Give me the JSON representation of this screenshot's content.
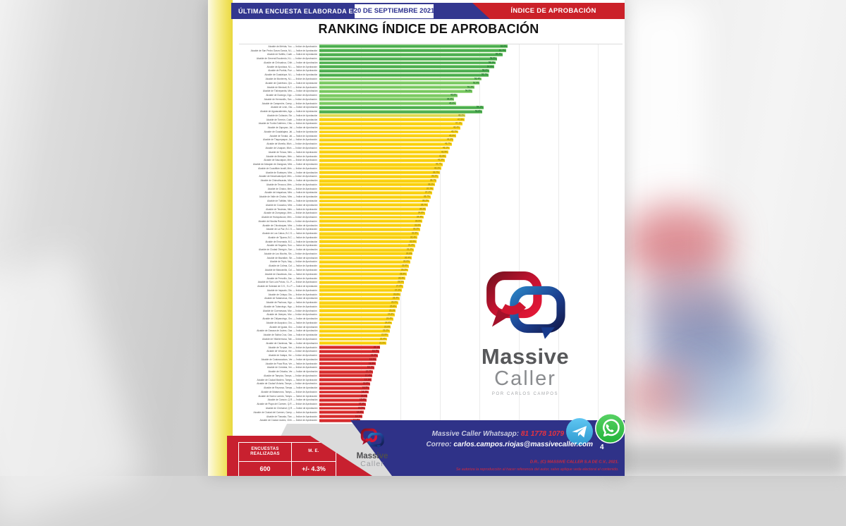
{
  "header": {
    "banner_label": "ÚLTIMA ENCUESTA ELABORADA EL",
    "banner_date": "20  DE SEPTIEMBRE 2021",
    "ribbon": "ÍNDICE DE APROBACIÓN"
  },
  "title": "RANKING ÍNDICE DE APROBACIÓN",
  "chart_data": {
    "type": "bar",
    "orientation": "horizontal",
    "title": "RANKING ÍNDICE DE APROBACIÓN",
    "unit": "%",
    "xlim": [
      0,
      100
    ],
    "grid": true,
    "legend": "color bands: green = high approval, yellow = mid approval, red = low approval",
    "label_prefix": "Alcalde de ",
    "label_suffix": " — Índice de Aprobación",
    "rows": [
      [
        "Mérida, Yuc.",
        62.0,
        "g1"
      ],
      [
        "San Pedro Garza García, N.L.",
        61.7,
        "g1"
      ],
      [
        "Saltillo, Coah.",
        60.4,
        "g1"
      ],
      [
        "General Escobedo, N.L.",
        58.5,
        "g1"
      ],
      [
        "Chihuahua, Chih.",
        58.1,
        "g1"
      ],
      [
        "Apodaca, N.L.",
        57.6,
        "g1"
      ],
      [
        "Puebla, Pue.",
        56.0,
        "g1"
      ],
      [
        "Guadalupe, N.L.",
        55.7,
        "g1"
      ],
      [
        "Monterrey, N.L.",
        53.4,
        "g2"
      ],
      [
        "Querétaro, Qro.",
        52.9,
        "g2"
      ],
      [
        "Mexicali, B.C.",
        51.2,
        "g2"
      ],
      [
        "Tlalnepantla, Méx.",
        50.5,
        "g2"
      ],
      [
        "Durango, Dgo.",
        45.6,
        "g2"
      ],
      [
        "Hermosillo, Son.",
        44.4,
        "g2"
      ],
      [
        "Campeche, Camp.",
        45.0,
        "g2"
      ],
      [
        "León, Gto.",
        54.1,
        "g1"
      ],
      [
        "Aguascalientes, Ags.",
        53.8,
        "g1"
      ],
      [
        "Culiacán, Sin.",
        48.2,
        "y2"
      ],
      [
        "Torreón, Coah.",
        47.8,
        "y1"
      ],
      [
        "Tuxtla Gutiérrez, Chis.",
        47.1,
        "y1"
      ],
      [
        "Zapopan, Jal.",
        46.4,
        "y1"
      ],
      [
        "Guadalajara, Jal.",
        45.7,
        "y1"
      ],
      [
        "Tonalá, Jal.",
        45.0,
        "y1"
      ],
      [
        "Tlaquepaque, Jal.",
        44.3,
        "y1"
      ],
      [
        "Morelia, Mich.",
        43.7,
        "y1"
      ],
      [
        "Uruapan, Mich.",
        43.1,
        "y1"
      ],
      [
        "Toluca, Méx.",
        42.5,
        "y1"
      ],
      [
        "Metepec, Méx.",
        41.9,
        "y1"
      ],
      [
        "Naucalpan, Méx.",
        41.3,
        "y1"
      ],
      [
        "Atizapán de Zaragoza, Méx.",
        40.7,
        "y1"
      ],
      [
        "Cuautitlán Izcalli, Méx.",
        40.2,
        "y1"
      ],
      [
        "Ecatepec, Méx.",
        39.7,
        "y1"
      ],
      [
        "Nezahualcóyotl, Méx.",
        39.2,
        "y1"
      ],
      [
        "Chimalhuacán, Méx.",
        38.7,
        "y1"
      ],
      [
        "Texcoco, Méx.",
        38.2,
        "y1"
      ],
      [
        "Chalco, Méx.",
        37.7,
        "y1"
      ],
      [
        "Ixtapaluca, Méx.",
        37.2,
        "y1"
      ],
      [
        "Valle de Chalco, Méx.",
        36.7,
        "y1"
      ],
      [
        "Tultitlán, Méx.",
        36.2,
        "y1"
      ],
      [
        "Coacalco, Méx.",
        35.7,
        "y1"
      ],
      [
        "Tecámac, Méx.",
        35.2,
        "y1"
      ],
      [
        "Zumpango, Méx.",
        34.8,
        "y1"
      ],
      [
        "Huixquilucan, Méx.",
        34.4,
        "y1"
      ],
      [
        "Nicolás Romero, Méx.",
        34.0,
        "y1"
      ],
      [
        "Chicoloapan, Méx.",
        33.6,
        "y1"
      ],
      [
        "La Paz, B.C.S.",
        33.2,
        "y1"
      ],
      [
        "Los Cabos, B.C.S.",
        32.8,
        "y1"
      ],
      [
        "Tijuana, B.C.",
        32.4,
        "y1"
      ],
      [
        "Ensenada, B.C.",
        32.0,
        "y1"
      ],
      [
        "Nogales, Son.",
        31.6,
        "y1"
      ],
      [
        "Ciudad Obregón, Son.",
        31.2,
        "y1"
      ],
      [
        "Los Mochis, Sin.",
        30.8,
        "y1"
      ],
      [
        "Mazatlán, Sin.",
        30.4,
        "y1"
      ],
      [
        "Tepic, Nay.",
        30.0,
        "y1"
      ],
      [
        "Colima, Col.",
        29.6,
        "y1"
      ],
      [
        "Manzanillo, Col.",
        29.2,
        "y1"
      ],
      [
        "Zacatecas, Zac.",
        28.8,
        "y1"
      ],
      [
        "Fresnillo, Zac.",
        28.4,
        "y1"
      ],
      [
        "San Luis Potosí, S.L.P.",
        28.0,
        "y1"
      ],
      [
        "Soledad de G.S., S.L.P.",
        27.6,
        "y1"
      ],
      [
        "Irapuato, Gto.",
        27.2,
        "y1"
      ],
      [
        "Celaya, Gto.",
        26.8,
        "y1"
      ],
      [
        "Salamanca, Gto.",
        26.4,
        "y1"
      ],
      [
        "Pachuca, Hgo.",
        26.0,
        "y1"
      ],
      [
        "Tulancingo, Hgo.",
        25.6,
        "y1"
      ],
      [
        "Cuernavaca, Mor.",
        25.2,
        "y1"
      ],
      [
        "Jiutepec, Mor.",
        24.8,
        "y1"
      ],
      [
        "Chilpancingo, Gro.",
        24.4,
        "y1"
      ],
      [
        "Acapulco, Gro.",
        24.0,
        "y1"
      ],
      [
        "Iguala, Gro.",
        23.6,
        "y1"
      ],
      [
        "Oaxaca de Juárez, Oax.",
        23.2,
        "y1"
      ],
      [
        "Salina Cruz, Oax.",
        22.8,
        "y1"
      ],
      [
        "Villahermosa, Tab.",
        22.4,
        "y1"
      ],
      [
        "Cárdenas, Tab.",
        22.0,
        "y1"
      ],
      [
        "Tuxpan, Ver.",
        20.1,
        "r"
      ],
      [
        "Veracruz, Ver.",
        19.7,
        "r"
      ],
      [
        "Xalapa, Ver.",
        19.3,
        "r"
      ],
      [
        "Coatzacoalcos, Ver.",
        18.9,
        "r"
      ],
      [
        "Poza Rica, Ver.",
        18.5,
        "r"
      ],
      [
        "Córdoba, Ver.",
        18.1,
        "r"
      ],
      [
        "Orizaba, Ver.",
        17.7,
        "r"
      ],
      [
        "Tampico, Tamps.",
        17.4,
        "r"
      ],
      [
        "Ciudad Madero, Tamps.",
        17.1,
        "r"
      ],
      [
        "Ciudad Victoria, Tamps.",
        16.8,
        "r"
      ],
      [
        "Reynosa, Tamps.",
        16.5,
        "r"
      ],
      [
        "Matamoros, Tamps.",
        16.2,
        "r"
      ],
      [
        "Nuevo Laredo, Tamps.",
        15.9,
        "r"
      ],
      [
        "Cancún, Q.R.",
        15.6,
        "r"
      ],
      [
        "Playa del Carmen, Q.R.",
        15.3,
        "r"
      ],
      [
        "Chetumal, Q.R.",
        15.0,
        "r"
      ],
      [
        "Ciudad del Carmen, Camp.",
        14.6,
        "r"
      ],
      [
        "Tlaxcala, Tlax.",
        14.1,
        "r"
      ],
      [
        "Ciudad Juárez, Chih.",
        13.4,
        "r"
      ]
    ]
  },
  "logo": {
    "brand_top": "Massive",
    "brand_bottom": "Caller",
    "byline": "POR CARLOS CAMPOS"
  },
  "footer": {
    "survey_box": {
      "col1_header": "ENCUESTAS REALIZADAS",
      "col2_header": "M. E.",
      "col1_value": "600",
      "col2_value": "+/- 4.3%"
    },
    "whatsapp_label": "Massive Caller Whatsapp:",
    "whatsapp_number": "81 1778 1079",
    "email_label": "Correo:",
    "email": "carlos.campos.riojas@massivecaller.com",
    "page_number": "4",
    "copyright": "D.R., (C) MASSIVE CALLER S.A DE C.V., 2021.",
    "disclaimer": "Se autoriza la reproducción al hacer referencia del autor, salvo aplique veda electoral el contenido."
  },
  "colors": {
    "header_blue": "#33378f",
    "header_red": "#cb2129",
    "footer_blue": "#2f3288",
    "footer_red": "#c8202f",
    "bar_green": "#3fa348",
    "bar_yellow": "#ffd60a",
    "bar_red": "#cb2026",
    "accent_yellow_stripe": "#e9d83f",
    "telegram_blue": "#41a9e0",
    "whatsapp_green": "#2cb742"
  }
}
